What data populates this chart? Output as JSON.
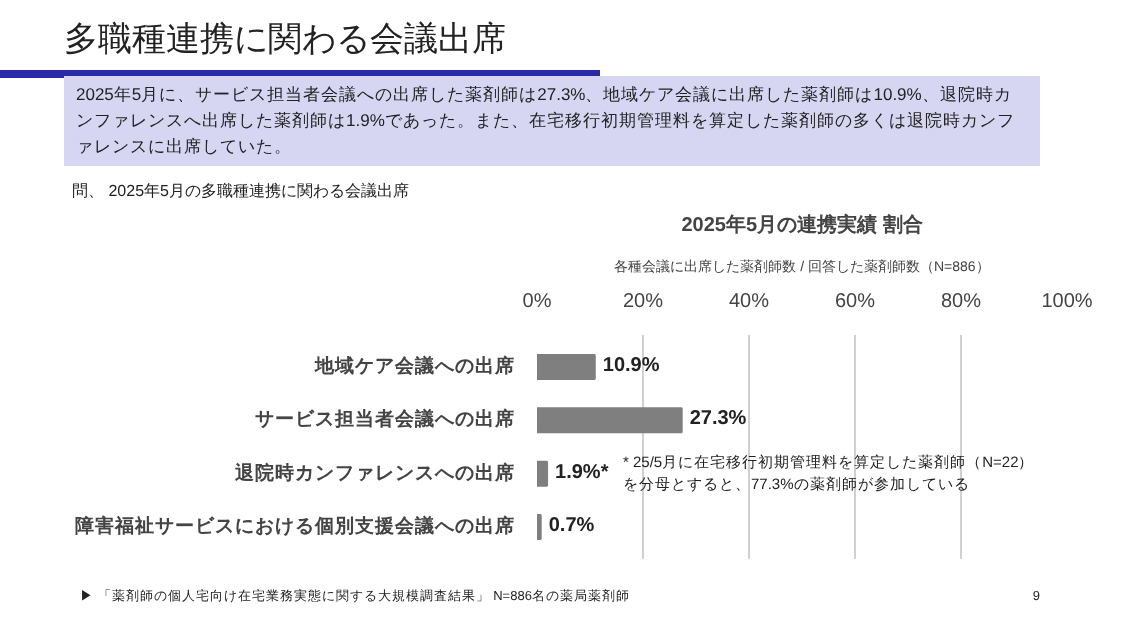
{
  "chart_data": {
    "type": "bar",
    "orientation": "horizontal",
    "title": "多職種連携に関わる会議出席",
    "subtitle": "2025年5月の連携実績 割合",
    "categories": [
      "地域ケア会議への出席",
      "サービス担当者会議への出席",
      "退院時カンファレンスへの出席",
      "障害福祉サービスにおける個別支援会議への出席"
    ],
    "values": [
      10.9,
      27.3,
      1.9,
      0.7
    ],
    "color": "#7f7f7f",
    "value_labels": [
      "10.9%",
      "27.3%",
      "1.9%*",
      "0.7%"
    ],
    "xlim": [
      0,
      100
    ],
    "xticks": [
      {
        "value": 0,
        "label": "0%"
      },
      {
        "value": 20,
        "label": "20%"
      },
      {
        "value": 40,
        "label": "40%"
      },
      {
        "value": 60,
        "label": "60%"
      },
      {
        "value": 80,
        "label": "80%"
      },
      {
        "value": 100,
        "label": "100%"
      }
    ],
    "grid": "x",
    "annotations": [
      "各種会議に出席した薬剤師数 / 回答した薬剤師数（N=886）",
      "2025年5月に、サービス担当者会議への出席した薬剤師は27.3%、地域ケア会議に出席した薬剤師は10.9%、退院時カンファレンスへ出席した薬剤師は1.9%であった。また、在宅移行初期管理料を算定した薬剤師の多くは退院時カンファレンスに出席していた。",
      "問、 2025年5月の多職種連携に関わる会議出席",
      "* 25/5月に在宅移行初期管理料を算定した薬剤師（N=22）",
      "を分母とすると、77.3%の薬剤師が参加している",
      "▶ 「薬剤師の個人宅向け在宅業務実態に関する大規模調査結果」 N=886名の薬局薬剤師",
      "9"
    ]
  }
}
